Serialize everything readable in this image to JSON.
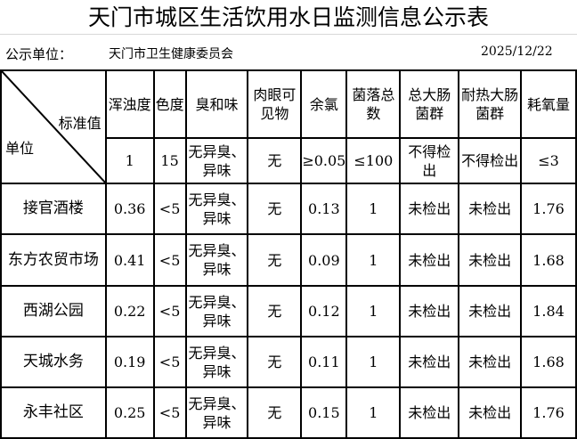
{
  "title": "天门市城区生活饮用水日监测信息公示表",
  "info": {
    "label": "公示单位：",
    "org": "天门市卫生健康委员会",
    "date": "2025/12/22"
  },
  "corner": {
    "top": "标准值",
    "bottom": "单位"
  },
  "headers": [
    "浑浊度",
    "色度",
    "臭和味",
    "肉眼可见物",
    "余氯",
    "菌落总数",
    "总大肠菌群",
    "耐热大肠菌群",
    "耗氧量"
  ],
  "standards": [
    "1",
    "15",
    "无异臭、异味",
    "无",
    "≥0.05",
    "≤100",
    "不得检出",
    "不得检出",
    "≤3"
  ],
  "rows": [
    {
      "unit": "接官酒楼",
      "values": [
        "0.36",
        "<5",
        "无异臭、异味",
        "无",
        "0.13",
        "1",
        "未检出",
        "未检出",
        "1.76"
      ]
    },
    {
      "unit": "东方农贸市场",
      "values": [
        "0.41",
        "<5",
        "无异臭、异味",
        "无",
        "0.09",
        "1",
        "未检出",
        "未检出",
        "1.68"
      ]
    },
    {
      "unit": "西湖公园",
      "values": [
        "0.22",
        "<5",
        "无异臭、异味",
        "无",
        "0.12",
        "1",
        "未检出",
        "未检出",
        "1.84"
      ]
    },
    {
      "unit": "天城水务",
      "values": [
        "0.19",
        "<5",
        "无异臭、异味",
        "无",
        "0.11",
        "1",
        "未检出",
        "未检出",
        "1.68"
      ]
    },
    {
      "unit": "永丰社区",
      "values": [
        "0.25",
        "<5",
        "无异臭、异味",
        "无",
        "0.15",
        "1",
        "未检出",
        "未检出",
        "1.76"
      ]
    }
  ]
}
